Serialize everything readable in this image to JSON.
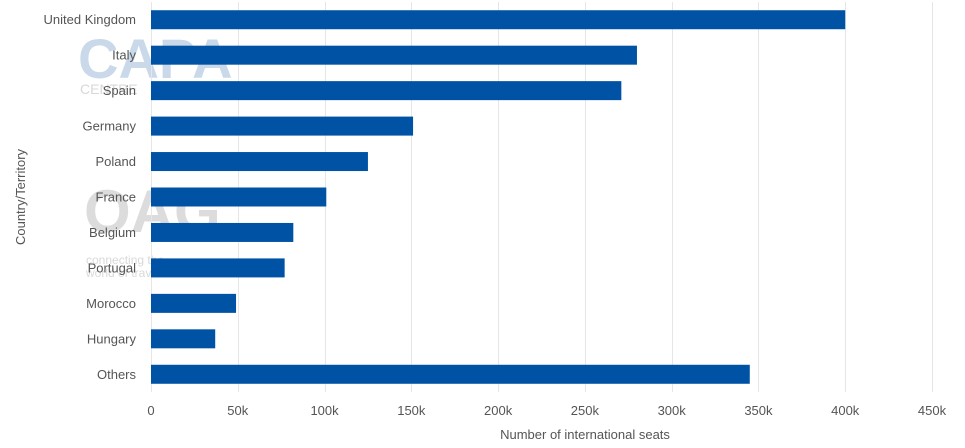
{
  "watermarks": {
    "capa": {
      "title": "CAPA",
      "subtitle": "CENTRE"
    },
    "oag": {
      "title": "OAG",
      "tagline_line1": "connecting the",
      "tagline_line2": "world of travel"
    }
  },
  "chart_data": {
    "type": "bar",
    "orientation": "horizontal",
    "categories": [
      "United Kingdom",
      "Italy",
      "Spain",
      "Germany",
      "Poland",
      "France",
      "Belgium",
      "Portugal",
      "Morocco",
      "Hungary",
      "Others"
    ],
    "values": [
      400000,
      280000,
      271000,
      151000,
      125000,
      101000,
      82000,
      77000,
      49000,
      37000,
      345000
    ],
    "xlabel": "Number of international seats",
    "ylabel": "Country/Territory",
    "xlim": [
      0,
      450000
    ],
    "x_ticks": [
      0,
      50000,
      100000,
      150000,
      200000,
      250000,
      300000,
      350000,
      400000,
      450000
    ],
    "x_tick_labels": [
      "0",
      "50k",
      "100k",
      "150k",
      "200k",
      "250k",
      "300k",
      "350k",
      "400k",
      "450k"
    ],
    "grid": "vertical",
    "bar_color": "#0052a5",
    "grid_color": "#e6e6e6"
  }
}
